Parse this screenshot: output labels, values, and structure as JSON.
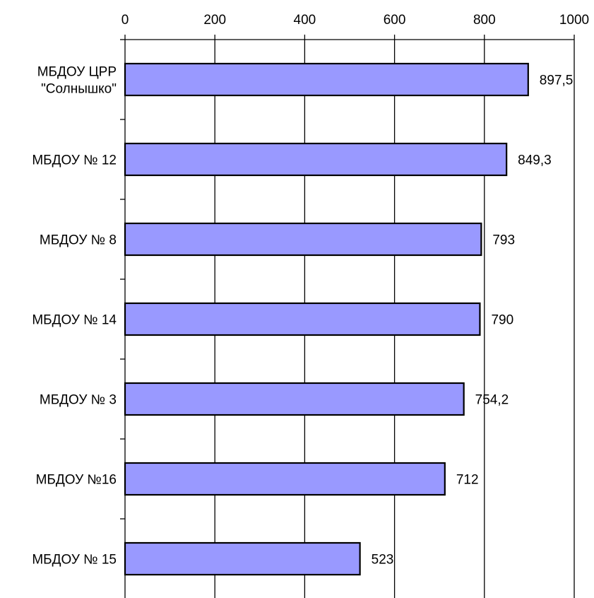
{
  "chart_data": {
    "type": "bar",
    "orientation": "horizontal",
    "categories": [
      [
        "МБДОУ ЦРР",
        "\"Солнышко\""
      ],
      [
        "МБДОУ № 12"
      ],
      [
        "МБДОУ № 8"
      ],
      [
        "МБДОУ № 14"
      ],
      [
        "МБДОУ № 3"
      ],
      [
        "МБДОУ №16"
      ],
      [
        "МБДОУ № 15"
      ]
    ],
    "values": [
      897.5,
      849.3,
      793,
      790,
      754.2,
      712,
      523
    ],
    "value_labels": [
      "897,5",
      "849,3",
      "793",
      "790",
      "754,2",
      "712",
      "523"
    ],
    "xlim": [
      0,
      1000
    ],
    "xticks": [
      0,
      200,
      400,
      600,
      800,
      1000
    ],
    "xtick_labels": [
      "0",
      "200",
      "400",
      "600",
      "800",
      "1000"
    ],
    "x_axis_position": "top",
    "grid": "vertical",
    "legend": "none",
    "colors": {
      "bar_fill": "#9999ff",
      "bar_stroke": "#000000",
      "grid": "#000000",
      "background": "#ffffff"
    }
  }
}
